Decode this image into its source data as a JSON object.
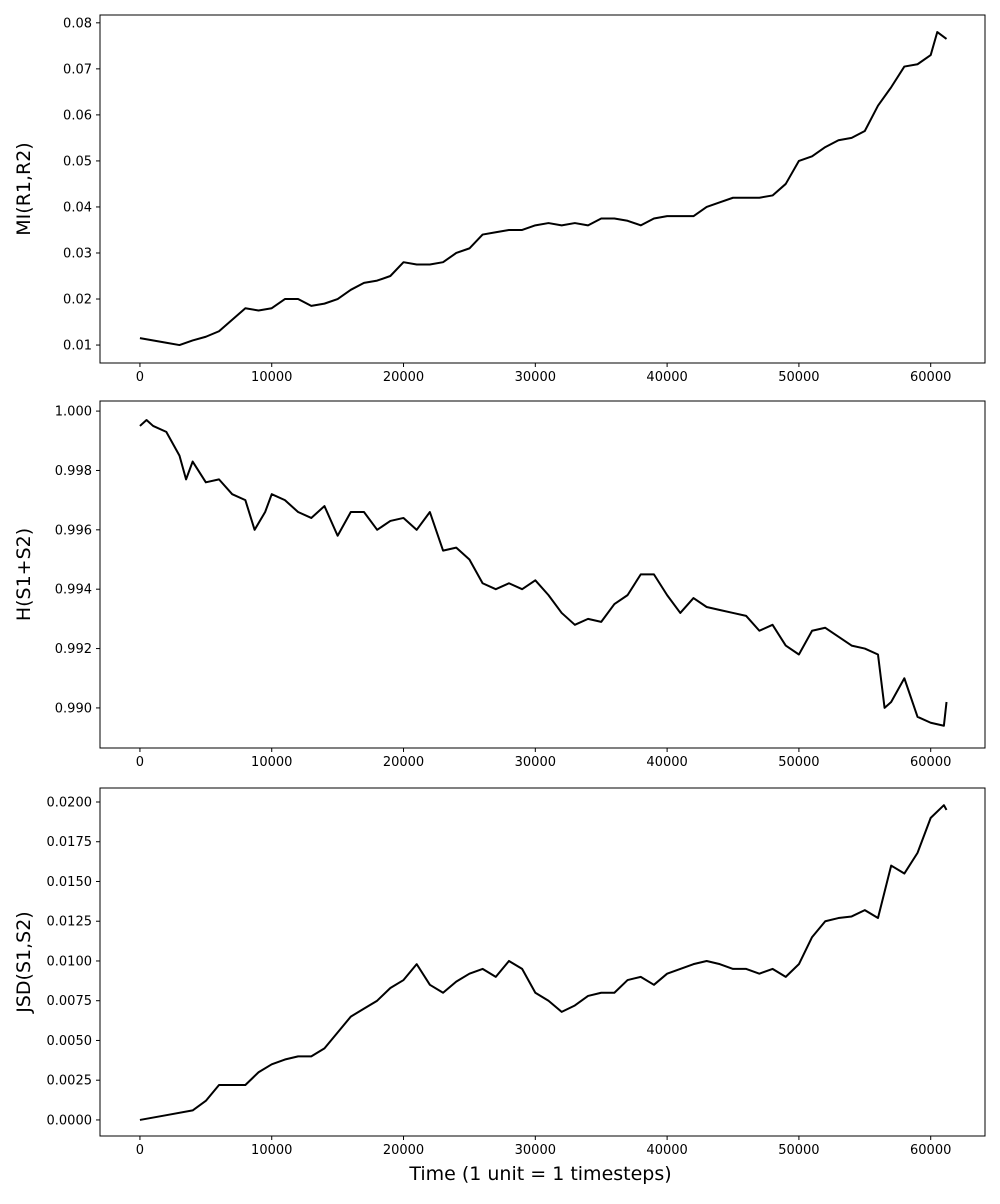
{
  "chart_data": [
    {
      "type": "line",
      "ylabel": "MI(R1,R2)",
      "color": "#000000",
      "x": [
        0,
        2000,
        3000,
        4000,
        5000,
        6000,
        7000,
        8000,
        9000,
        10000,
        11000,
        12000,
        13000,
        14000,
        15000,
        16000,
        17000,
        18000,
        19000,
        20000,
        21000,
        22000,
        23000,
        24000,
        25000,
        26000,
        27000,
        28000,
        29000,
        30000,
        31000,
        32000,
        33000,
        34000,
        35000,
        36000,
        37000,
        38000,
        39000,
        40000,
        41000,
        42000,
        43000,
        44000,
        45000,
        46000,
        47000,
        48000,
        49000,
        50000,
        51000,
        52000,
        53000,
        54000,
        55000,
        56000,
        57000,
        58000,
        59000,
        60000,
        60500,
        61200
      ],
      "values": [
        0.0115,
        0.0105,
        0.01,
        0.011,
        0.0118,
        0.013,
        0.0155,
        0.018,
        0.0175,
        0.018,
        0.02,
        0.02,
        0.0185,
        0.019,
        0.02,
        0.022,
        0.0235,
        0.024,
        0.025,
        0.028,
        0.0275,
        0.0275,
        0.028,
        0.03,
        0.031,
        0.034,
        0.0345,
        0.035,
        0.035,
        0.036,
        0.0365,
        0.036,
        0.0365,
        0.036,
        0.0375,
        0.0375,
        0.037,
        0.036,
        0.0375,
        0.038,
        0.038,
        0.038,
        0.04,
        0.041,
        0.042,
        0.042,
        0.042,
        0.0425,
        0.045,
        0.05,
        0.051,
        0.053,
        0.0545,
        0.055,
        0.0565,
        0.062,
        0.066,
        0.0705,
        0.071,
        0.073,
        0.078,
        0.0765
      ],
      "xlim": [
        -3030,
        64120
      ],
      "xticks": [
        0,
        10000,
        20000,
        30000,
        40000,
        50000,
        60000
      ],
      "ylim": [
        0.0061,
        0.0817
      ],
      "yticks": [
        0.01,
        0.02,
        0.03,
        0.04,
        0.05,
        0.06,
        0.07,
        0.08
      ]
    },
    {
      "type": "line",
      "ylabel": "H(S1+S2)",
      "color": "#000000",
      "x": [
        0,
        500,
        1000,
        2000,
        3000,
        3500,
        4000,
        5000,
        6000,
        7000,
        8000,
        8700,
        9500,
        10000,
        11000,
        12000,
        13000,
        14000,
        15000,
        16000,
        17000,
        18000,
        19000,
        20000,
        21000,
        22000,
        23000,
        24000,
        25000,
        26000,
        27000,
        28000,
        29000,
        30000,
        31000,
        32000,
        33000,
        34000,
        35000,
        36000,
        37000,
        38000,
        39000,
        40000,
        41000,
        42000,
        43000,
        44000,
        45000,
        46000,
        47000,
        48000,
        49000,
        50000,
        51000,
        52000,
        53000,
        54000,
        55000,
        56000,
        56500,
        57000,
        58000,
        59000,
        60000,
        61000,
        61200
      ],
      "values": [
        0.9995,
        0.9997,
        0.9995,
        0.9993,
        0.9985,
        0.9977,
        0.9983,
        0.9976,
        0.9977,
        0.9972,
        0.997,
        0.996,
        0.9966,
        0.9972,
        0.997,
        0.9966,
        0.9964,
        0.9968,
        0.9958,
        0.9966,
        0.9966,
        0.996,
        0.9963,
        0.9964,
        0.996,
        0.9966,
        0.9953,
        0.9954,
        0.995,
        0.9942,
        0.994,
        0.9942,
        0.994,
        0.9943,
        0.9938,
        0.9932,
        0.9928,
        0.993,
        0.9929,
        0.9935,
        0.9938,
        0.9945,
        0.9945,
        0.9938,
        0.9932,
        0.9937,
        0.9934,
        0.9933,
        0.9932,
        0.9931,
        0.9926,
        0.9928,
        0.9921,
        0.9918,
        0.9926,
        0.9927,
        0.9924,
        0.9921,
        0.992,
        0.9918,
        0.99,
        0.9902,
        0.991,
        0.9897,
        0.9895,
        0.9894,
        0.9902
      ],
      "xlim": [
        -3030,
        64120
      ],
      "xticks": [
        0,
        10000,
        20000,
        30000,
        40000,
        50000,
        60000
      ],
      "ylim": [
        0.98865,
        1.00034
      ],
      "yticks": [
        {
          "value": 0.99,
          "label": "0.990"
        },
        {
          "value": 0.992,
          "label": "0.992"
        },
        {
          "value": 0.994,
          "label": "0.994"
        },
        {
          "value": 0.996,
          "label": "0.996"
        },
        {
          "value": 0.998,
          "label": "0.998"
        },
        {
          "value": 1,
          "label": "1.000"
        }
      ]
    },
    {
      "type": "line",
      "ylabel": "JSD(S1,S2)",
      "xlabel": "Time (1 unit = 1 timesteps)",
      "color": "#000000",
      "x": [
        0,
        2000,
        4000,
        5000,
        6000,
        7000,
        8000,
        9000,
        10000,
        11000,
        12000,
        13000,
        14000,
        15000,
        16000,
        17000,
        18000,
        19000,
        20000,
        21000,
        22000,
        23000,
        24000,
        25000,
        26000,
        27000,
        28000,
        29000,
        30000,
        31000,
        32000,
        33000,
        34000,
        35000,
        36000,
        37000,
        38000,
        39000,
        40000,
        41000,
        42000,
        43000,
        44000,
        45000,
        46000,
        47000,
        48000,
        49000,
        50000,
        51000,
        52000,
        53000,
        54000,
        55000,
        56000,
        57000,
        58000,
        59000,
        60000,
        61000,
        61200
      ],
      "values": [
        0,
        0.0003,
        0.0006,
        0.0012,
        0.0022,
        0.0022,
        0.0022,
        0.003,
        0.0035,
        0.0038,
        0.004,
        0.004,
        0.0045,
        0.0055,
        0.0065,
        0.007,
        0.0075,
        0.0083,
        0.0088,
        0.0098,
        0.0085,
        0.008,
        0.0087,
        0.0092,
        0.0095,
        0.009,
        0.01,
        0.0095,
        0.008,
        0.0075,
        0.0068,
        0.0072,
        0.0078,
        0.008,
        0.008,
        0.0088,
        0.009,
        0.0085,
        0.0092,
        0.0095,
        0.0098,
        0.01,
        0.0098,
        0.0095,
        0.0095,
        0.0092,
        0.0095,
        0.009,
        0.0098,
        0.0115,
        0.0125,
        0.0127,
        0.0128,
        0.0132,
        0.0127,
        0.016,
        0.0155,
        0.0168,
        0.019,
        0.0198,
        0.0195
      ],
      "xlim": [
        -3030,
        64120
      ],
      "xticks": [
        0,
        10000,
        20000,
        30000,
        40000,
        50000,
        60000
      ],
      "ylim": [
        -0.00101,
        0.02088
      ],
      "yticks": [
        {
          "value": 0,
          "label": "0.0000"
        },
        {
          "value": 0.0025,
          "label": "0.0025"
        },
        {
          "value": 0.005,
          "label": "0.0050"
        },
        {
          "value": 0.0075,
          "label": "0.0075"
        },
        {
          "value": 0.01,
          "label": "0.0100"
        },
        {
          "value": 0.0125,
          "label": "0.0125"
        },
        {
          "value": 0.015,
          "label": "0.0150"
        },
        {
          "value": 0.0175,
          "label": "0.0175"
        },
        {
          "value": 0.02,
          "label": "0.0200"
        }
      ]
    }
  ]
}
